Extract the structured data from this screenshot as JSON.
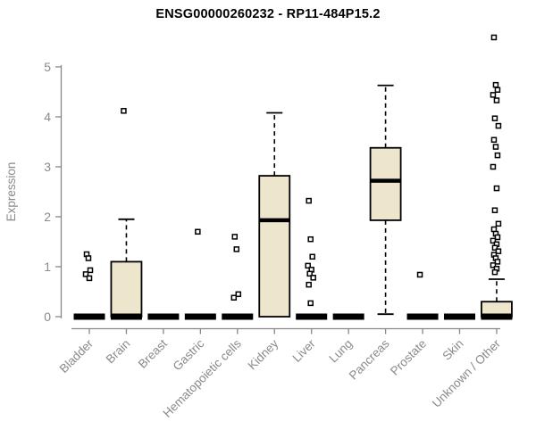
{
  "chart_data": {
    "type": "boxplot",
    "title": "ENSG00000260232 - RP11-484P15.2",
    "ylabel": "Expression",
    "xlabel": "",
    "ylim": [
      0,
      5.6
    ],
    "yticks": [
      0,
      1,
      2,
      3,
      4,
      5
    ],
    "grid": false,
    "legend": "none",
    "box_fill_color": "#EDE6CC",
    "box_stroke_color": "#000000",
    "axis_color": "#888888",
    "label_color": "#8a8a8a",
    "categories": [
      "Bladder",
      "Brain",
      "Breast",
      "Gastric",
      "Hematopoietic cells",
      "Kidney",
      "Liver",
      "Lung",
      "Pancreas",
      "Prostate",
      "Skin",
      "Unknown / Other"
    ],
    "boxes": [
      {
        "category": "Bladder",
        "low": 0,
        "q1": 0,
        "median": 0,
        "q3": 0,
        "high": 0,
        "outliers": [
          1.25,
          1.17,
          0.93,
          0.85,
          0.77
        ]
      },
      {
        "category": "Brain",
        "low": 0,
        "q1": 0,
        "median": 0,
        "q3": 1.1,
        "high": 1.95,
        "outliers": [
          4.12
        ]
      },
      {
        "category": "Breast",
        "low": 0,
        "q1": 0,
        "median": 0,
        "q3": 0,
        "high": 0,
        "outliers": []
      },
      {
        "category": "Gastric",
        "low": 0,
        "q1": 0,
        "median": 0,
        "q3": 0,
        "high": 0,
        "outliers": [
          1.7
        ]
      },
      {
        "category": "Hematopoietic cells",
        "low": 0,
        "q1": 0,
        "median": 0,
        "q3": 0,
        "high": 0,
        "outliers": [
          1.6,
          1.35,
          0.45,
          0.38
        ]
      },
      {
        "category": "Kidney",
        "low": 0,
        "q1": 0,
        "median": 1.93,
        "q3": 2.82,
        "high": 4.08,
        "outliers": []
      },
      {
        "category": "Liver",
        "low": 0,
        "q1": 0,
        "median": 0,
        "q3": 0,
        "high": 0,
        "outliers": [
          2.32,
          1.55,
          1.2,
          1.02,
          0.94,
          0.86,
          0.78,
          0.64,
          0.27
        ]
      },
      {
        "category": "Lung",
        "low": 0,
        "q1": 0,
        "median": 0,
        "q3": 0,
        "high": 0,
        "outliers": []
      },
      {
        "category": "Pancreas",
        "low": 0.05,
        "q1": 1.93,
        "median": 2.72,
        "q3": 3.38,
        "high": 4.63,
        "outliers": []
      },
      {
        "category": "Prostate",
        "low": 0,
        "q1": 0,
        "median": 0,
        "q3": 0,
        "high": 0,
        "outliers": [
          0.84
        ]
      },
      {
        "category": "Skin",
        "low": 0,
        "q1": 0,
        "median": 0,
        "q3": 0,
        "high": 0,
        "outliers": []
      },
      {
        "category": "Unknown / Other",
        "low": 0,
        "q1": 0,
        "median": 0,
        "q3": 0.3,
        "high": 0.75,
        "outliers": [
          5.59,
          4.64,
          4.54,
          4.44,
          4.33,
          3.97,
          3.82,
          3.54,
          3.4,
          3.23,
          3.0,
          2.57,
          2.13,
          1.86,
          1.75,
          1.66,
          1.59,
          1.52,
          1.45,
          1.38,
          1.31,
          1.24,
          1.17,
          1.1,
          1.03,
          0.96,
          0.89
        ]
      }
    ]
  }
}
